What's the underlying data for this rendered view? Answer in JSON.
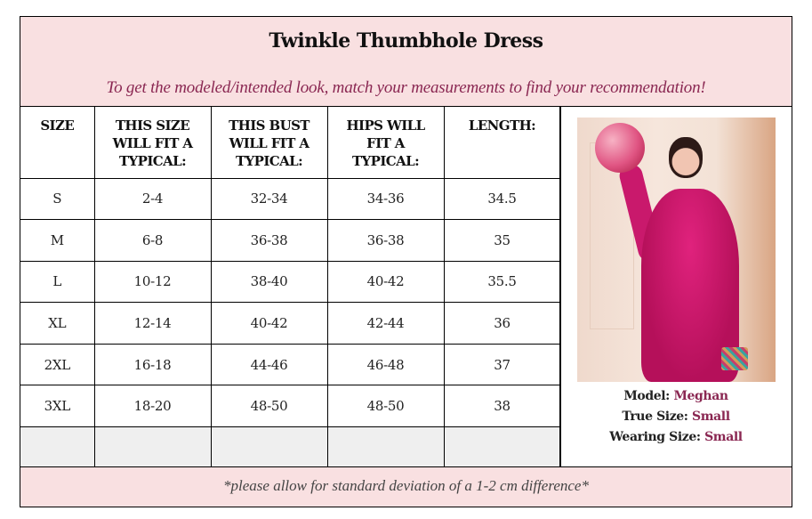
{
  "header": {
    "title": "Twinkle Thumbhole Dress",
    "subtitle": "To get the modeled/intended look, match your measurements to find your recommendation!"
  },
  "table": {
    "columns": [
      "SIZE",
      "THIS SIZE WILL FIT A TYPICAL:",
      "THIS BUST WILL FIT A TYPICAL:",
      "HIPS WILL FIT A TYPICAL:",
      "LENGTH:"
    ],
    "column_lines": [
      [
        "SIZE"
      ],
      [
        "THIS SIZE",
        "WILL FIT A",
        "TYPICAL:"
      ],
      [
        "THIS BUST",
        "WILL FIT A",
        "TYPICAL:"
      ],
      [
        "HIPS WILL",
        "FIT A",
        "TYPICAL:"
      ],
      [
        "LENGTH:"
      ]
    ],
    "rows": [
      [
        "S",
        "2-4",
        "32-34",
        "34-36",
        "34.5"
      ],
      [
        "M",
        "6-8",
        "36-38",
        "36-38",
        "35"
      ],
      [
        "L",
        "10-12",
        "38-40",
        "40-42",
        "35.5"
      ],
      [
        "XL",
        "12-14",
        "40-42",
        "42-44",
        "36"
      ],
      [
        "2XL",
        "16-18",
        "44-46",
        "46-48",
        "37"
      ],
      [
        "3XL",
        "18-20",
        "48-50",
        "48-50",
        "38"
      ],
      [
        "",
        "",
        "",
        "",
        ""
      ]
    ]
  },
  "model": {
    "photo_icon": "model-photo",
    "model_label": "Model:",
    "model_name": "Meghan",
    "true_size_label": "True Size:",
    "true_size_value": "Small",
    "wearing_size_label": "Wearing Size:",
    "wearing_size_value": "Small"
  },
  "footer": {
    "note": "*please allow for standard deviation of a 1-2 cm difference*"
  },
  "colors": {
    "header_bg": "#f9e0e1",
    "accent": "#8a2752",
    "empty_row_bg": "#efefef",
    "border": "#000000"
  }
}
